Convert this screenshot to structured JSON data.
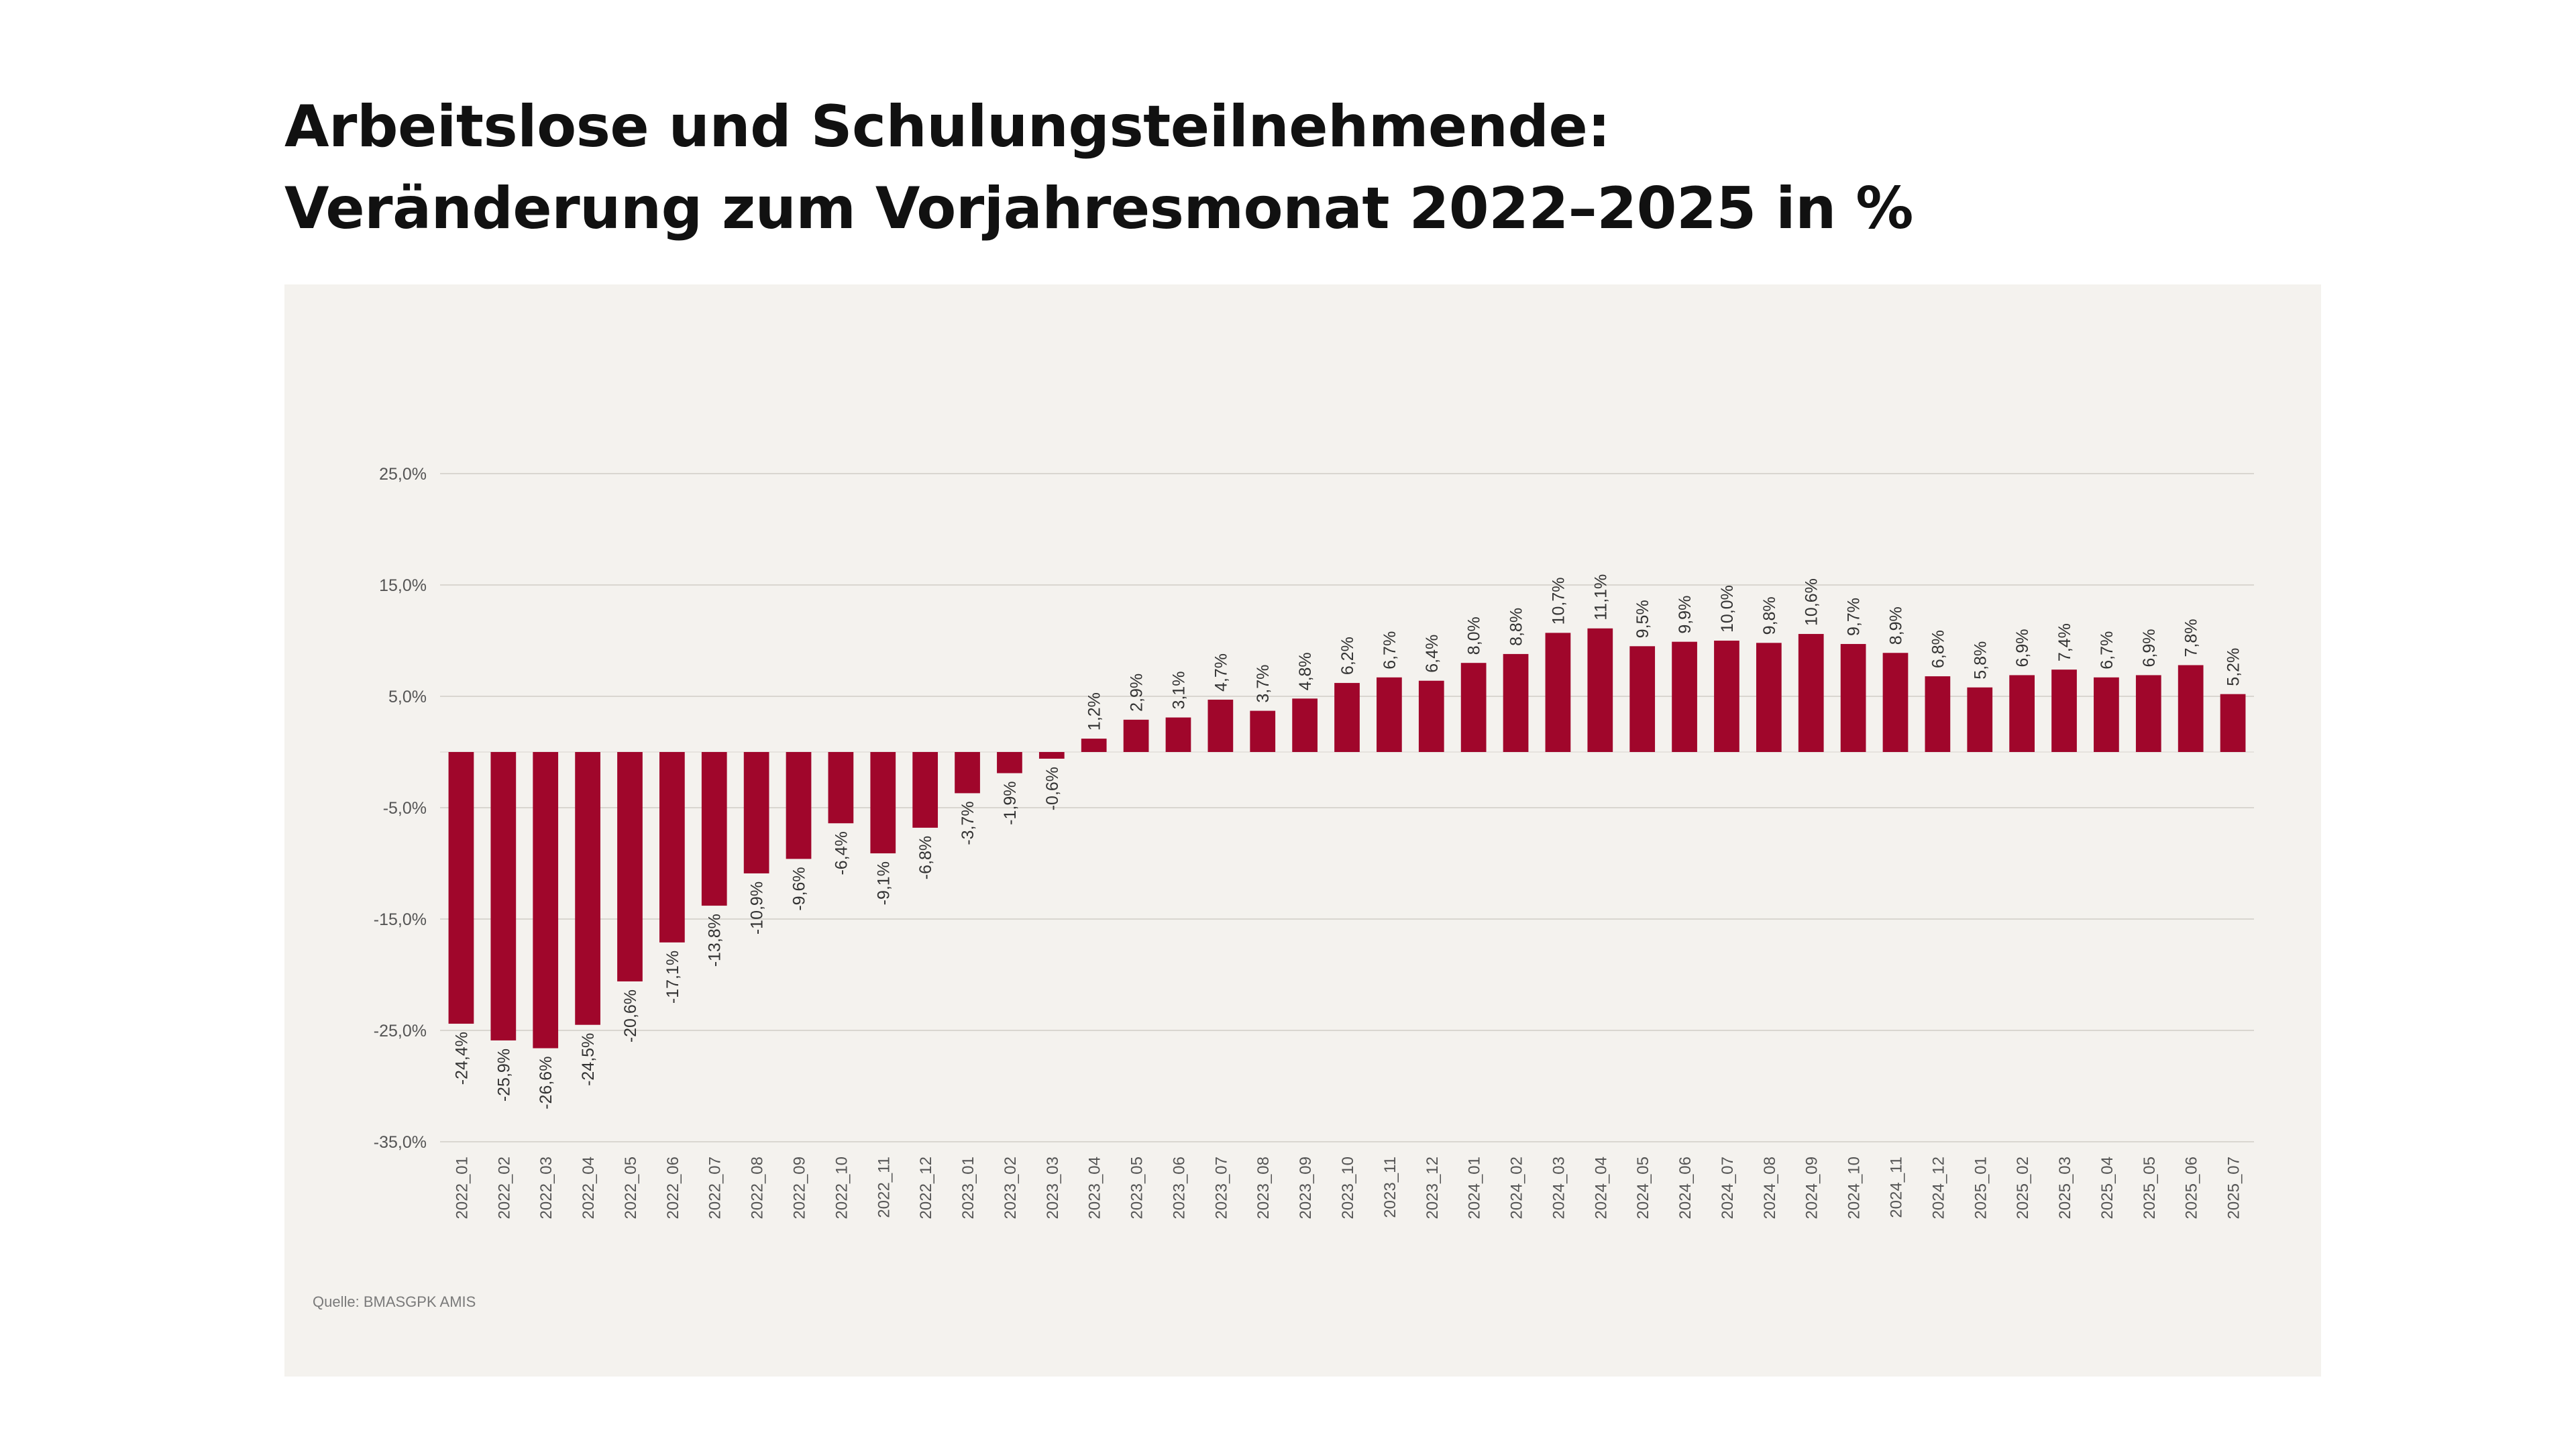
{
  "title": {
    "line1": "Arbeitslose und Schulungsteilnehmende:",
    "line2": "Veränderung zum Vorjahresmonat 2022–2025 in %"
  },
  "source": "Quelle: BMASGPK AMIS",
  "colors": {
    "bar": "#a0062b",
    "panel": "#f4f2ee",
    "grid": "#d9d6d0"
  },
  "chart_data": {
    "type": "bar",
    "title": "Arbeitslose und Schulungsteilnehmende: Veränderung zum Vorjahresmonat 2022–2025 in %",
    "xlabel": "",
    "ylabel": "",
    "ylim": [
      -35,
      25
    ],
    "yticks": [
      25,
      15,
      5,
      -5,
      -15,
      -25,
      -35
    ],
    "ytick_labels": [
      "25,0%",
      "15,0%",
      "5,0%",
      "-5,0%",
      "-15,0%",
      "-25,0%",
      "-35,0%"
    ],
    "grid": true,
    "legend": "none",
    "categories": [
      "2022_01",
      "2022_02",
      "2022_03",
      "2022_04",
      "2022_05",
      "2022_06",
      "2022_07",
      "2022_08",
      "2022_09",
      "2022_10",
      "2022_11",
      "2022_12",
      "2023_01",
      "2023_02",
      "2023_03",
      "2023_04",
      "2023_05",
      "2023_06",
      "2023_07",
      "2023_08",
      "2023_09",
      "2023_10",
      "2023_11",
      "2023_12",
      "2024_01",
      "2024_02",
      "2024_03",
      "2024_04",
      "2024_05",
      "2024_06",
      "2024_07",
      "2024_08",
      "2024_09",
      "2024_10",
      "2024_11",
      "2024_12",
      "2025_01",
      "2025_02",
      "2025_03",
      "2025_04",
      "2025_05",
      "2025_06",
      "2025_07"
    ],
    "values": [
      -24.4,
      -25.9,
      -26.6,
      -24.5,
      -20.6,
      -17.1,
      -13.8,
      -10.9,
      -9.6,
      -6.4,
      -9.1,
      -6.8,
      -3.7,
      -1.9,
      -0.6,
      1.2,
      2.9,
      3.1,
      4.7,
      3.7,
      4.8,
      6.2,
      6.7,
      6.4,
      8.0,
      8.8,
      10.7,
      11.1,
      9.5,
      9.9,
      10.0,
      9.8,
      10.6,
      9.7,
      8.9,
      6.8,
      5.8,
      6.9,
      7.4,
      6.7,
      6.9,
      7.8,
      5.2
    ],
    "data_labels": [
      "-24,4%",
      "-25,9%",
      "-26,6%",
      "-24,5%",
      "-20,6%",
      "-17,1%",
      "-13,8%",
      "-10,9%",
      "-9,6%",
      "-6,4%",
      "-9,1%",
      "-6,8%",
      "-3,7%",
      "-1,9%",
      "-0,6%",
      "1,2%",
      "2,9%",
      "3,1%",
      "4,7%",
      "3,7%",
      "4,8%",
      "6,2%",
      "6,7%",
      "6,4%",
      "8,0%",
      "8,8%",
      "10,7%",
      "11,1%",
      "9,5%",
      "9,9%",
      "10,0%",
      "9,8%",
      "10,6%",
      "9,7%",
      "8,9%",
      "6,8%",
      "5,8%",
      "6,9%",
      "7,4%",
      "6,7%",
      "6,9%",
      "7,8%",
      "5,2%"
    ]
  }
}
